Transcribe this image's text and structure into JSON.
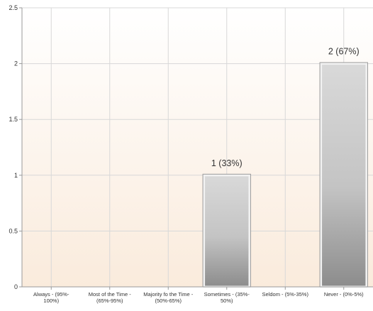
{
  "chart_data": {
    "type": "bar",
    "categories": [
      [
        "Always - (95%-",
        "100%)"
      ],
      [
        "Most of the Time -",
        "(65%-95%)"
      ],
      [
        "Majority fo the Time -",
        "(50%-65%)"
      ],
      [
        "Sometimes - (35%-",
        "50%)"
      ],
      [
        "Seldom - (5%-35%)"
      ],
      [
        "Never - (0%-5%)"
      ]
    ],
    "values": [
      0,
      0,
      0,
      1,
      0,
      2
    ],
    "data_labels": [
      "",
      "",
      "",
      "1 (33%)",
      "",
      "2 (67%)"
    ],
    "y_ticks": [
      "0",
      "0.5",
      "1",
      "1.5",
      "2",
      "2.5"
    ],
    "y_tick_values": [
      0,
      0.5,
      1,
      1.5,
      2,
      2.5
    ],
    "ylim": [
      0,
      2.5
    ],
    "title": "",
    "xlabel": "",
    "ylabel": "",
    "grid": true,
    "colors": {
      "bg_top": "#ffffff",
      "bg_bottom": "#faebdc",
      "grid": "#d8d8d8",
      "axis": "#999999",
      "bar_light": "#d9d9d9",
      "bar_dark": "#8c8c8c",
      "bar_border": "#f2f2f2",
      "bar_outline": "#9a9a9a"
    }
  }
}
